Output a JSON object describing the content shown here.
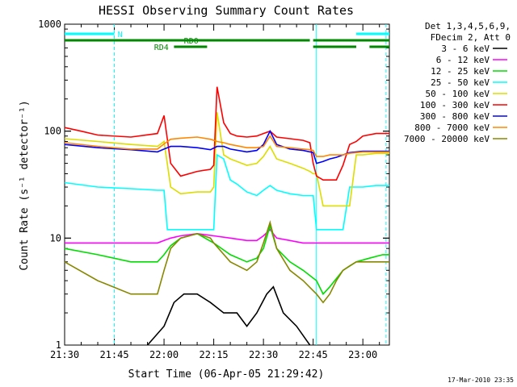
{
  "chart_data": {
    "type": "line",
    "title": "HESSI Observing Summary Count Rates",
    "xlabel": "Start Time (06-Apr-05 21:29:42)",
    "ylabel": "Count Rate (s⁻¹ detector⁻¹)",
    "yscale": "log",
    "ylim": [
      1,
      1000
    ],
    "xlim_minutes": [
      0,
      98
    ],
    "x_ticks": [
      {
        "m": 0,
        "label": "21:30"
      },
      {
        "m": 15,
        "label": "21:45"
      },
      {
        "m": 30,
        "label": "22:00"
      },
      {
        "m": 45,
        "label": "22:15"
      },
      {
        "m": 60,
        "label": "22:30"
      },
      {
        "m": 75,
        "label": "22:45"
      },
      {
        "m": 90,
        "label": "23:00"
      }
    ],
    "y_ticks": [
      {
        "v": 1,
        "label": "1"
      },
      {
        "v": 10,
        "label": "10"
      },
      {
        "v": 100,
        "label": "100"
      },
      {
        "v": 1000,
        "label": "1000"
      }
    ],
    "legend": {
      "placement": "right",
      "header": [
        "Det 1,3,4,5,6,9,",
        "FDecim 2, Att 0"
      ]
    },
    "series": [
      {
        "name": "3 - 6 keV",
        "color": "#000000",
        "x": [
          0,
          20,
          25,
          30,
          33,
          36,
          40,
          44,
          48,
          52,
          55,
          58,
          61,
          63,
          66,
          70,
          74,
          78,
          80,
          82,
          84,
          86,
          88,
          90,
          94,
          98
        ],
        "y": [
          null,
          null,
          1,
          1.5,
          2.5,
          3,
          3,
          2.5,
          2,
          2,
          1.5,
          2,
          3,
          3.5,
          2,
          1.5,
          1,
          null,
          null,
          null,
          null,
          null,
          null,
          null,
          null,
          null
        ]
      },
      {
        "name": "6 - 12 keV",
        "color": "#ff00ff",
        "x": [
          0,
          10,
          20,
          28,
          30,
          32,
          35,
          40,
          45,
          50,
          55,
          58,
          60,
          62,
          64,
          68,
          72,
          76,
          78,
          80,
          84,
          88,
          92,
          96,
          98
        ],
        "y": [
          9,
          9,
          9,
          9,
          9.5,
          10,
          10.5,
          11,
          10.5,
          10,
          9.5,
          9.5,
          10.5,
          12,
          10,
          9.5,
          9,
          9,
          9,
          9,
          9,
          9,
          9,
          9,
          9
        ]
      },
      {
        "name": "12 - 25 keV",
        "color": "#00dd00",
        "x": [
          0,
          10,
          20,
          28,
          30,
          32,
          35,
          40,
          45,
          50,
          55,
          58,
          60,
          62,
          64,
          68,
          72,
          76,
          78,
          80,
          84,
          88,
          92,
          96,
          98
        ],
        "y": [
          8,
          7,
          6,
          6,
          7,
          8.5,
          10,
          11,
          9,
          7,
          6,
          6.5,
          8,
          13,
          8,
          6,
          5,
          4,
          3,
          3.5,
          5,
          6,
          6.5,
          7,
          7
        ]
      },
      {
        "name": "25 - 50 keV",
        "color": "#00ffff",
        "x": [
          0,
          10,
          20,
          28,
          30,
          31,
          32,
          35,
          40,
          44,
          45,
          46,
          48,
          50,
          52,
          55,
          58,
          60,
          62,
          64,
          68,
          72,
          74,
          75,
          76,
          78,
          80,
          82,
          84,
          86,
          88,
          90,
          94,
          98
        ],
        "y": [
          33,
          30,
          29,
          28,
          28,
          12,
          12,
          12,
          12,
          12,
          12,
          60,
          55,
          35,
          32,
          27,
          25,
          28,
          31,
          28,
          26,
          25,
          25,
          25,
          12,
          12,
          12,
          12,
          12,
          30,
          30,
          30,
          31,
          31
        ]
      },
      {
        "name": "50 - 100 keV",
        "color": "#dddd00",
        "x": [
          0,
          10,
          20,
          28,
          30,
          32,
          35,
          40,
          44,
          45,
          46,
          48,
          50,
          52,
          55,
          58,
          60,
          62,
          64,
          68,
          72,
          74,
          75,
          76,
          78,
          80,
          82,
          84,
          86,
          88,
          90,
          94,
          98
        ],
        "y": [
          85,
          80,
          75,
          72,
          80,
          30,
          26,
          27,
          27,
          30,
          150,
          60,
          55,
          52,
          48,
          50,
          58,
          72,
          55,
          50,
          45,
          42,
          40,
          40,
          20,
          20,
          20,
          20,
          20,
          60,
          60,
          62,
          62
        ]
      },
      {
        "name": "100 - 300 keV",
        "color": "#ff0000",
        "x": [
          0,
          5,
          10,
          20,
          28,
          30,
          32,
          35,
          40,
          44,
          45,
          46,
          48,
          50,
          52,
          55,
          58,
          60,
          62,
          64,
          68,
          72,
          74,
          75,
          76,
          78,
          80,
          82,
          84,
          86,
          88,
          90,
          94,
          98
        ],
        "y": [
          108,
          100,
          92,
          88,
          95,
          140,
          50,
          38,
          42,
          44,
          48,
          260,
          120,
          95,
          90,
          88,
          90,
          95,
          100,
          88,
          85,
          82,
          78,
          50,
          38,
          35,
          35,
          35,
          48,
          75,
          80,
          90,
          95,
          95
        ]
      },
      {
        "name": "300 - 800 keV",
        "color": "#0000ff",
        "x": [
          0,
          10,
          20,
          28,
          30,
          32,
          35,
          40,
          44,
          46,
          48,
          50,
          55,
          58,
          60,
          62,
          64,
          68,
          72,
          74,
          75,
          76,
          78,
          80,
          82,
          84,
          86,
          88,
          90,
          94,
          98
        ],
        "y": [
          75,
          70,
          67,
          64,
          68,
          72,
          72,
          70,
          67,
          72,
          72,
          68,
          64,
          66,
          75,
          100,
          75,
          68,
          66,
          64,
          63,
          50,
          52,
          55,
          57,
          60,
          63,
          64,
          65,
          65,
          65
        ]
      },
      {
        "name": "800 - 7000 keV",
        "color": "#ff8800",
        "x": [
          0,
          10,
          20,
          28,
          30,
          32,
          35,
          40,
          44,
          46,
          48,
          50,
          55,
          58,
          60,
          62,
          64,
          68,
          72,
          74,
          75,
          76,
          78,
          80,
          82,
          84,
          86,
          88,
          90,
          94,
          98
        ],
        "y": [
          78,
          72,
          68,
          68,
          76,
          84,
          86,
          88,
          84,
          80,
          78,
          75,
          70,
          70,
          72,
          90,
          72,
          70,
          68,
          67,
          66,
          58,
          58,
          60,
          60,
          60,
          62,
          63,
          64,
          64,
          64
        ]
      },
      {
        "name": "7000 - 20000 keV",
        "color": "#888800",
        "x": [
          0,
          10,
          20,
          28,
          30,
          32,
          35,
          40,
          44,
          45,
          50,
          55,
          58,
          60,
          62,
          64,
          68,
          72,
          76,
          78,
          80,
          82,
          84,
          86,
          88,
          90,
          94,
          98
        ],
        "y": [
          6,
          4,
          3,
          3,
          5,
          8,
          10,
          11,
          10,
          9,
          6,
          5,
          6,
          9,
          14,
          8,
          5,
          4,
          3,
          2.5,
          3,
          4,
          5,
          5.5,
          6,
          6,
          6,
          6
        ]
      }
    ],
    "orbit_bars": [
      {
        "label": "N",
        "color": "#00ffff",
        "segments": [
          [
            0,
            15
          ],
          [
            88,
            98
          ]
        ]
      },
      {
        "label": "RD0",
        "color": "#008800",
        "segments": [
          [
            0,
            74
          ],
          [
            75,
            98
          ]
        ]
      },
      {
        "label": "RD4",
        "color": "#008800",
        "segments": [
          [
            33,
            43
          ],
          [
            75,
            88
          ],
          [
            92,
            98
          ]
        ]
      }
    ],
    "boundaries": [
      {
        "m": 15,
        "color": "#00ffff",
        "style": "dashed"
      },
      {
        "m": 76,
        "color": "#00ffff",
        "style": "solid"
      },
      {
        "m": 97,
        "color": "#00ffff",
        "style": "dashed"
      }
    ],
    "footer_stamp": "17-Mar-2010 23:35"
  }
}
